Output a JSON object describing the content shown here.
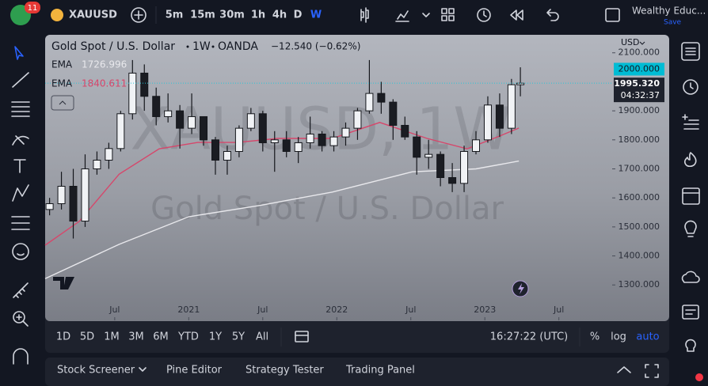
{
  "top_bar": {
    "badge": "11",
    "symbol": "XAUUSD",
    "timeframes": [
      "5m",
      "15m",
      "30m",
      "1h",
      "4h",
      "D",
      "W"
    ],
    "active_timeframe": 6,
    "account": "Wealthy Educ...",
    "save": "Save"
  },
  "chart_data": {
    "type": "candlestick",
    "title": "Gold Spot / U.S. Dollar",
    "interval": "1W",
    "source": "OANDA",
    "change": "−12.540 (−0.62%)",
    "watermark": "XAUUSD, 1W",
    "currency": "USD",
    "x": [
      2020.06,
      2020.14,
      2020.22,
      2020.3,
      2020.38,
      2020.46,
      2020.54,
      2020.62,
      2020.7,
      2020.78,
      2020.86,
      2020.94,
      2021.02,
      2021.1,
      2021.18,
      2021.26,
      2021.34,
      2021.42,
      2021.5,
      2021.58,
      2021.66,
      2021.74,
      2021.82,
      2021.9,
      2021.98,
      2022.06,
      2022.14,
      2022.22,
      2022.3,
      2022.38,
      2022.46,
      2022.54,
      2022.62,
      2022.7,
      2022.78,
      2022.86,
      2022.94,
      2023.02,
      2023.1,
      2023.18,
      2023.24
    ],
    "open": [
      1560,
      1580,
      1640,
      1520,
      1700,
      1730,
      1770,
      1890,
      2030,
      1950,
      1880,
      1900,
      1840,
      1880,
      1800,
      1730,
      1760,
      1840,
      1890,
      1790,
      1800,
      1760,
      1790,
      1820,
      1780,
      1810,
      1840,
      1900,
      1960,
      1930,
      1850,
      1810,
      1740,
      1750,
      1670,
      1650,
      1760,
      1800,
      1920,
      1840,
      1990
    ],
    "high": [
      1600,
      1690,
      1700,
      1750,
      1760,
      1790,
      1900,
      2075,
      2060,
      1980,
      1960,
      1920,
      1960,
      1880,
      1810,
      1780,
      1850,
      1910,
      1900,
      1830,
      1830,
      1810,
      1880,
      1830,
      1830,
      1860,
      1910,
      2075,
      2000,
      1940,
      1880,
      1830,
      1800,
      1760,
      1720,
      1780,
      1830,
      1950,
      1960,
      2010,
      2050
    ],
    "low": [
      1540,
      1560,
      1460,
      1500,
      1680,
      1700,
      1760,
      1870,
      1900,
      1850,
      1860,
      1770,
      1820,
      1780,
      1680,
      1680,
      1740,
      1830,
      1760,
      1690,
      1740,
      1720,
      1770,
      1760,
      1760,
      1780,
      1800,
      1890,
      1890,
      1800,
      1800,
      1680,
      1700,
      1640,
      1620,
      1620,
      1750,
      1790,
      1810,
      1820,
      1950
    ],
    "close": [
      1580,
      1640,
      1520,
      1700,
      1730,
      1770,
      1890,
      2030,
      1950,
      1880,
      1900,
      1840,
      1880,
      1800,
      1730,
      1760,
      1840,
      1890,
      1790,
      1800,
      1760,
      1790,
      1820,
      1780,
      1810,
      1840,
      1900,
      1960,
      1930,
      1850,
      1810,
      1740,
      1750,
      1670,
      1650,
      1760,
      1800,
      1920,
      1840,
      1990,
      1995.32
    ],
    "up_color": "#f0f2f5",
    "down_color": "#1a1c22",
    "series": [
      {
        "name": "EMA",
        "color": "#e8e8ec",
        "x": [
          2020.03,
          2020.53,
          2021.0,
          2021.49,
          2021.97,
          2022.51,
          2022.94,
          2023.23
        ],
        "values": [
          1322,
          1440,
          1535,
          1575,
          1620,
          1690,
          1700,
          1726.996
        ]
      },
      {
        "name": "EMA",
        "color": "#d6476b",
        "x": [
          2020.03,
          2020.26,
          2020.53,
          2020.8,
          2021.06,
          2021.33,
          2021.6,
          2021.97,
          2022.29,
          2022.61,
          2022.88,
          2023.1,
          2023.23
        ],
        "values": [
          1437,
          1519,
          1682,
          1769,
          1791,
          1791,
          1805,
          1805,
          1860,
          1805,
          1769,
          1813,
          1840.611
        ]
      }
    ],
    "last_price": {
      "value": 1995.32,
      "label": "1995.320"
    },
    "countdown": "04:32:37",
    "alert_line": {
      "value": 2000,
      "label": "2000.000"
    },
    "ylim": [
      1178,
      2162
    ],
    "yticks": [
      {
        "value": 1300,
        "label": "1300.000"
      },
      {
        "value": 1400,
        "label": "1400.000"
      },
      {
        "value": 1500,
        "label": "1500.000"
      },
      {
        "value": 1600,
        "label": "1600.000"
      },
      {
        "value": 1700,
        "label": "1700.000"
      },
      {
        "value": 1800,
        "label": "1800.000"
      },
      {
        "value": 1900,
        "label": "1900.000"
      },
      {
        "value": 2100,
        "label": "2100.000"
      }
    ],
    "xlim": [
      2020.03,
      2023.86
    ],
    "xticks": [
      {
        "value": 2020.5,
        "label": "Jul"
      },
      2021,
      {
        "value": 2021.5,
        "label": "Jul"
      },
      2022,
      {
        "value": 2022.5,
        "label": "Jul"
      },
      2023,
      {
        "value": 2023.5,
        "label": "Jul"
      }
    ],
    "grid": false,
    "log_scale": false
  },
  "range_bar": {
    "ranges": [
      "1D",
      "5D",
      "1M",
      "3M",
      "6M",
      "YTD",
      "1Y",
      "5Y",
      "All"
    ],
    "clock": "16:27:22 (UTC)",
    "percent": "%",
    "log": "log",
    "auto": "auto"
  },
  "bottom_panel": {
    "tabs": [
      "Stock Screener",
      "Pine Editor",
      "Strategy Tester",
      "Trading Panel"
    ]
  }
}
